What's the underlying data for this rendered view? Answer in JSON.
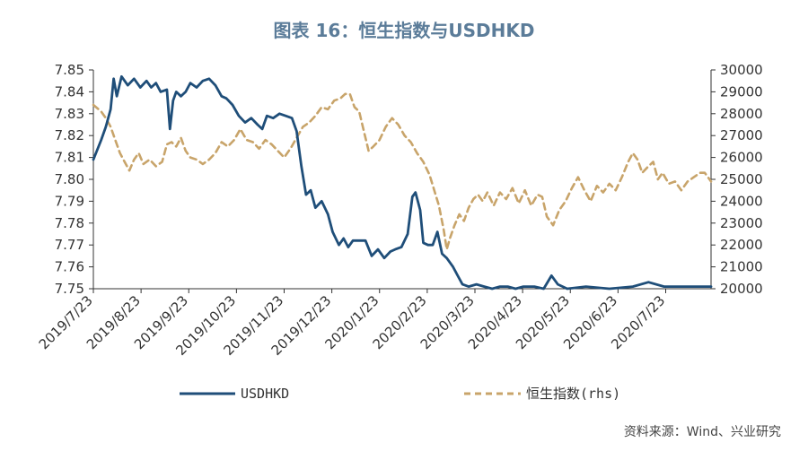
{
  "title": "图表 16：恒生指数与USDHKD",
  "source": "资料来源：Wind、兴业研究",
  "chart_data": {
    "type": "line",
    "x_tick_labels": [
      "2019/7/23",
      "2019/8/23",
      "2019/9/23",
      "2019/10/23",
      "2019/11/23",
      "2019/12/23",
      "2020/1/23",
      "2020/2/23",
      "2020/3/23",
      "2020/4/23",
      "2020/5/23",
      "2020/6/23",
      "2020/7/23"
    ],
    "x_range_days": [
      0,
      395
    ],
    "y_left": {
      "ticks": [
        "7.85",
        "7.84",
        "7.83",
        "7.82",
        "7.81",
        "7.80",
        "7.79",
        "7.78",
        "7.77",
        "7.76",
        "7.75"
      ],
      "min": 7.75,
      "max": 7.85
    },
    "y_right": {
      "ticks": [
        "30000",
        "29000",
        "28000",
        "27000",
        "26000",
        "25000",
        "24000",
        "23000",
        "22000",
        "21000",
        "20000"
      ],
      "min": 20000,
      "max": 30000
    },
    "series": [
      {
        "name": "USDHKD",
        "axis": "left",
        "color": "#1f4e79",
        "style": "solid",
        "points": [
          [
            0,
            7.809
          ],
          [
            5,
            7.818
          ],
          [
            8,
            7.824
          ],
          [
            11,
            7.832
          ],
          [
            13,
            7.846
          ],
          [
            15,
            7.838
          ],
          [
            18,
            7.847
          ],
          [
            22,
            7.843
          ],
          [
            26,
            7.846
          ],
          [
            30,
            7.842
          ],
          [
            34,
            7.845
          ],
          [
            37,
            7.842
          ],
          [
            40,
            7.844
          ],
          [
            43,
            7.84
          ],
          [
            47,
            7.841
          ],
          [
            49,
            7.823
          ],
          [
            51,
            7.836
          ],
          [
            53,
            7.84
          ],
          [
            56,
            7.838
          ],
          [
            59,
            7.84
          ],
          [
            62,
            7.844
          ],
          [
            66,
            7.842
          ],
          [
            70,
            7.845
          ],
          [
            74,
            7.846
          ],
          [
            78,
            7.843
          ],
          [
            82,
            7.838
          ],
          [
            85,
            7.837
          ],
          [
            89,
            7.834
          ],
          [
            93,
            7.829
          ],
          [
            97,
            7.826
          ],
          [
            101,
            7.828
          ],
          [
            105,
            7.825
          ],
          [
            108,
            7.823
          ],
          [
            111,
            7.829
          ],
          [
            115,
            7.828
          ],
          [
            119,
            7.83
          ],
          [
            123,
            7.829
          ],
          [
            127,
            7.828
          ],
          [
            130,
            7.822
          ],
          [
            133,
            7.806
          ],
          [
            136,
            7.793
          ],
          [
            139,
            7.795
          ],
          [
            142,
            7.787
          ],
          [
            146,
            7.79
          ],
          [
            150,
            7.784
          ],
          [
            153,
            7.776
          ],
          [
            157,
            7.77
          ],
          [
            160,
            7.773
          ],
          [
            163,
            7.769
          ],
          [
            166,
            7.772
          ],
          [
            170,
            7.772
          ],
          [
            174,
            7.772
          ],
          [
            178,
            7.765
          ],
          [
            182,
            7.768
          ],
          [
            186,
            7.764
          ],
          [
            190,
            7.767
          ],
          [
            193,
            7.768
          ],
          [
            197,
            7.769
          ],
          [
            201,
            7.775
          ],
          [
            204,
            7.792
          ],
          [
            206,
            7.794
          ],
          [
            209,
            7.786
          ],
          [
            211,
            7.771
          ],
          [
            214,
            7.77
          ],
          [
            217,
            7.77
          ],
          [
            220,
            7.776
          ],
          [
            223,
            7.766
          ],
          [
            226,
            7.764
          ],
          [
            230,
            7.76
          ],
          [
            233,
            7.756
          ],
          [
            236,
            7.752
          ],
          [
            240,
            7.751
          ],
          [
            245,
            7.752
          ],
          [
            250,
            7.751
          ],
          [
            255,
            7.75
          ],
          [
            260,
            7.751
          ],
          [
            265,
            7.751
          ],
          [
            270,
            7.75
          ],
          [
            275,
            7.751
          ],
          [
            282,
            7.751
          ],
          [
            288,
            7.75
          ],
          [
            293,
            7.756
          ],
          [
            297,
            7.752
          ],
          [
            303,
            7.75
          ],
          [
            315,
            7.751
          ],
          [
            330,
            7.75
          ],
          [
            345,
            7.751
          ],
          [
            355,
            7.753
          ],
          [
            365,
            7.751
          ],
          [
            380,
            7.751
          ],
          [
            395,
            7.751
          ]
        ]
      },
      {
        "name": "恒生指数(rhs)",
        "axis": "right",
        "color": "#c8a46a",
        "style": "dashed",
        "points": [
          [
            0,
            28400
          ],
          [
            5,
            28100
          ],
          [
            8,
            27800
          ],
          [
            11,
            27400
          ],
          [
            14,
            26800
          ],
          [
            17,
            26200
          ],
          [
            20,
            25800
          ],
          [
            23,
            25400
          ],
          [
            26,
            25900
          ],
          [
            29,
            26200
          ],
          [
            32,
            25700
          ],
          [
            36,
            25900
          ],
          [
            40,
            25600
          ],
          [
            44,
            25800
          ],
          [
            47,
            26600
          ],
          [
            50,
            26700
          ],
          [
            53,
            26500
          ],
          [
            56,
            26900
          ],
          [
            59,
            26300
          ],
          [
            62,
            26000
          ],
          [
            66,
            25900
          ],
          [
            70,
            25700
          ],
          [
            74,
            25900
          ],
          [
            78,
            26200
          ],
          [
            82,
            26700
          ],
          [
            86,
            26500
          ],
          [
            90,
            26800
          ],
          [
            94,
            27300
          ],
          [
            98,
            26800
          ],
          [
            102,
            26700
          ],
          [
            106,
            26400
          ],
          [
            110,
            26800
          ],
          [
            114,
            26600
          ],
          [
            118,
            26300
          ],
          [
            122,
            26000
          ],
          [
            126,
            26400
          ],
          [
            130,
            26900
          ],
          [
            134,
            27400
          ],
          [
            138,
            27600
          ],
          [
            142,
            27900
          ],
          [
            146,
            28300
          ],
          [
            150,
            28200
          ],
          [
            154,
            28600
          ],
          [
            158,
            28700
          ],
          [
            161,
            28900
          ],
          [
            164,
            28900
          ],
          [
            167,
            28300
          ],
          [
            170,
            28100
          ],
          [
            173,
            27200
          ],
          [
            176,
            26300
          ],
          [
            179,
            26500
          ],
          [
            183,
            26800
          ],
          [
            187,
            27400
          ],
          [
            191,
            27800
          ],
          [
            195,
            27500
          ],
          [
            199,
            27000
          ],
          [
            203,
            26700
          ],
          [
            207,
            26200
          ],
          [
            211,
            25800
          ],
          [
            215,
            25200
          ],
          [
            218,
            24500
          ],
          [
            221,
            23800
          ],
          [
            224,
            22700
          ],
          [
            226,
            21800
          ],
          [
            228,
            22300
          ],
          [
            231,
            22900
          ],
          [
            234,
            23400
          ],
          [
            237,
            23100
          ],
          [
            240,
            23700
          ],
          [
            243,
            24100
          ],
          [
            246,
            24300
          ],
          [
            249,
            24000
          ],
          [
            252,
            24400
          ],
          [
            256,
            23800
          ],
          [
            260,
            24400
          ],
          [
            264,
            24100
          ],
          [
            268,
            24600
          ],
          [
            272,
            23900
          ],
          [
            276,
            24500
          ],
          [
            280,
            23800
          ],
          [
            284,
            24300
          ],
          [
            287,
            24200
          ],
          [
            290,
            23300
          ],
          [
            294,
            22900
          ],
          [
            298,
            23600
          ],
          [
            302,
            24000
          ],
          [
            306,
            24600
          ],
          [
            310,
            25100
          ],
          [
            314,
            24500
          ],
          [
            318,
            24000
          ],
          [
            322,
            24700
          ],
          [
            326,
            24400
          ],
          [
            330,
            24800
          ],
          [
            334,
            24500
          ],
          [
            338,
            25100
          ],
          [
            342,
            25800
          ],
          [
            345,
            26200
          ],
          [
            348,
            25900
          ],
          [
            351,
            25300
          ],
          [
            355,
            25600
          ],
          [
            358,
            25800
          ],
          [
            361,
            25000
          ],
          [
            364,
            25300
          ],
          [
            368,
            24800
          ],
          [
            372,
            24900
          ],
          [
            376,
            24500
          ],
          [
            380,
            24900
          ],
          [
            384,
            25100
          ],
          [
            388,
            25300
          ],
          [
            391,
            25300
          ],
          [
            395,
            24900
          ]
        ]
      }
    ],
    "legend": [
      "USDHKD",
      "恒生指数(rhs)"
    ]
  }
}
